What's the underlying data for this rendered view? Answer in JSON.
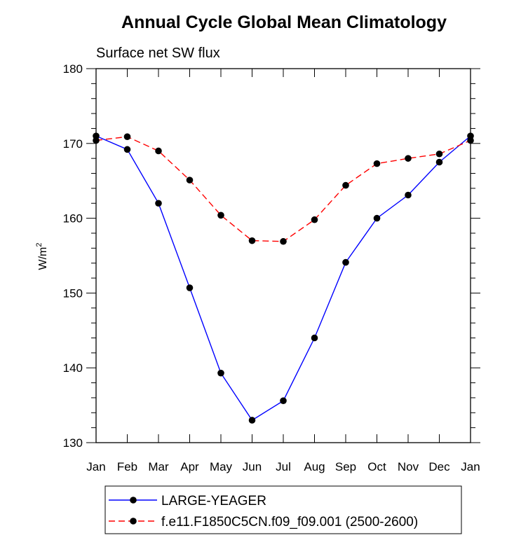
{
  "chart_data": {
    "type": "line",
    "title": "Annual Cycle Global Mean Climatology",
    "subtitle": "Surface net SW flux",
    "ylabel": "W/m",
    "ylabel_superscript": "2",
    "xlabel": "",
    "categories": [
      "Jan",
      "Feb",
      "Mar",
      "Apr",
      "May",
      "Jun",
      "Jul",
      "Aug",
      "Sep",
      "Oct",
      "Nov",
      "Dec",
      "Jan"
    ],
    "ylim": [
      130,
      180
    ],
    "yticks": [
      "130",
      "140",
      "150",
      "160",
      "170",
      "180"
    ],
    "legend_position": "bottom",
    "series": [
      {
        "name": "LARGE-YEAGER",
        "color": "#0000ff",
        "dash": "solid",
        "values": [
          171.0,
          169.2,
          162.0,
          150.7,
          139.3,
          133.0,
          135.6,
          144.0,
          154.1,
          160.0,
          163.1,
          167.5,
          171.0
        ]
      },
      {
        "name": "f.e11.F1850C5CN.f09_f09.001 (2500-2600)",
        "color": "#ff0000",
        "dash": "dashed",
        "values": [
          170.4,
          170.9,
          169.0,
          165.1,
          160.4,
          157.0,
          156.9,
          159.8,
          164.4,
          167.3,
          168.0,
          168.6,
          170.4
        ]
      }
    ]
  }
}
